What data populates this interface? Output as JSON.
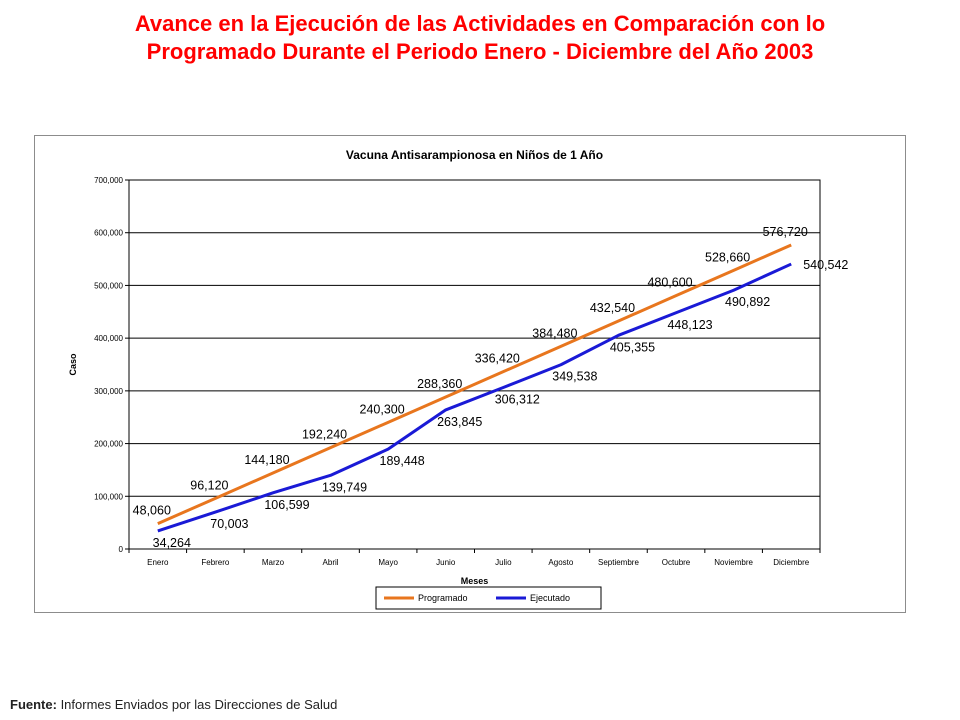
{
  "slide": {
    "title_line1": "Avance en la Ejecución de las Actividades en Comparación con lo",
    "title_line2": "Programado Durante el Periodo Enero - Diciembre del Año 2003"
  },
  "footer": {
    "label": "Fuente:",
    "text": " Informes Enviados por las Direcciones de Salud"
  },
  "chart_data": {
    "type": "line",
    "title": "Vacuna Antisarampionosa en Niños de 1 Año",
    "xlabel": "Meses",
    "ylabel": "Caso",
    "categories": [
      "Enero",
      "Febrero",
      "Marzo",
      "Abril",
      "Mayo",
      "Junio",
      "Julio",
      "Agosto",
      "Septiembre",
      "Octubre",
      "Noviembre",
      "Diciembre"
    ],
    "ylim": [
      0,
      700000
    ],
    "yticks": [
      0,
      100000,
      200000,
      300000,
      400000,
      500000,
      600000,
      700000
    ],
    "ytick_labels": [
      "0",
      "100,000",
      "200,000",
      "300,000",
      "400,000",
      "500,000",
      "600,000",
      "700,000"
    ],
    "grid": true,
    "legend_position": "bottom",
    "series": [
      {
        "name": "Programado",
        "color": "#e8761e",
        "values": [
          48060,
          96120,
          144180,
          192240,
          240300,
          288360,
          336420,
          384480,
          432540,
          480600,
          528660,
          576720
        ],
        "labels": [
          "48,060",
          "96,120",
          "144,180",
          "192,240",
          "240,300",
          "288,360",
          "336,420",
          "384,480",
          "432,540",
          "480,600",
          "528,660",
          "576,720"
        ]
      },
      {
        "name": "Ejecutado",
        "color": "#1a1ad6",
        "values": [
          34264,
          70003,
          106599,
          139749,
          189448,
          263845,
          306312,
          349538,
          405355,
          448123,
          490892,
          540542
        ],
        "labels": [
          "34,264",
          "70,003",
          "106,599",
          "139,749",
          "189,448",
          "263,845",
          "306,312",
          "349,538",
          "405,355",
          "448,123",
          "490,892",
          "540,542"
        ]
      }
    ]
  }
}
